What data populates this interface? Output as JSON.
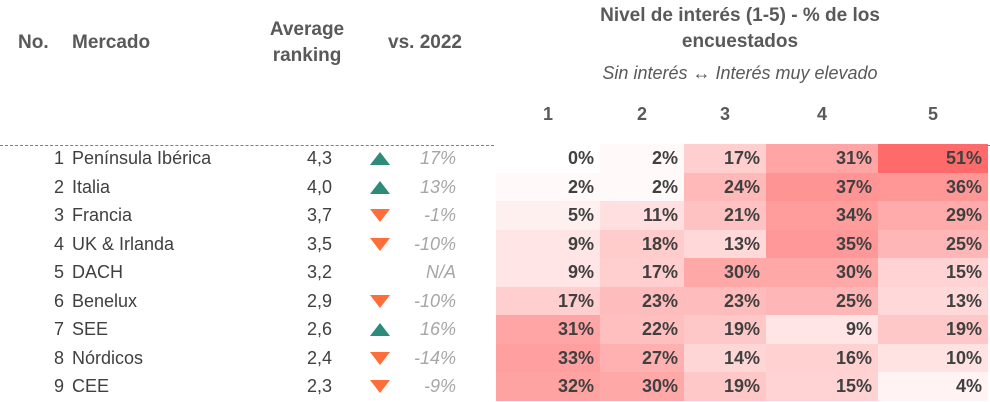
{
  "header": {
    "no": "No.",
    "market": "Mercado",
    "ranking_line1": "Average",
    "ranking_line2": "ranking",
    "vs": "vs. 2022",
    "interest_line1": "Nivel de interés (1-5) - % de los",
    "interest_line2": "encuestados",
    "interest_scale": "Sin interés ↔ Interés muy elevado",
    "levels": [
      "1",
      "2",
      "3",
      "4",
      "5"
    ]
  },
  "colors": {
    "heat_low": "#ffffff",
    "heat_high": "#ff6b6b",
    "arrow_up": "#2e8b7a",
    "arrow_down": "#ff6e3a",
    "change_text": "#a6a6a6"
  },
  "chart_data": {
    "type": "table",
    "columns": [
      "No.",
      "Mercado",
      "Average ranking",
      "vs. 2022",
      "1",
      "2",
      "3",
      "4",
      "5"
    ],
    "rows": [
      {
        "no": "1",
        "market": "Península Ibérica",
        "ranking": "4,3",
        "trend": "up",
        "change": "17%",
        "dist": [
          "0%",
          "2%",
          "17%",
          "31%",
          "51%"
        ],
        "dist_values": [
          0,
          2,
          17,
          31,
          51
        ]
      },
      {
        "no": "2",
        "market": "Italia",
        "ranking": "4,0",
        "trend": "up",
        "change": "13%",
        "dist": [
          "2%",
          "2%",
          "24%",
          "37%",
          "36%"
        ],
        "dist_values": [
          2,
          2,
          24,
          37,
          36
        ]
      },
      {
        "no": "3",
        "market": "Francia",
        "ranking": "3,7",
        "trend": "down",
        "change": "-1%",
        "dist": [
          "5%",
          "11%",
          "21%",
          "34%",
          "29%"
        ],
        "dist_values": [
          5,
          11,
          21,
          34,
          29
        ]
      },
      {
        "no": "4",
        "market": "UK & Irlanda",
        "ranking": "3,5",
        "trend": "down",
        "change": "-10%",
        "dist": [
          "9%",
          "18%",
          "13%",
          "35%",
          "25%"
        ],
        "dist_values": [
          9,
          18,
          13,
          35,
          25
        ]
      },
      {
        "no": "5",
        "market": "DACH",
        "ranking": "3,2",
        "trend": "none",
        "change": "N/A",
        "dist": [
          "9%",
          "17%",
          "30%",
          "30%",
          "15%"
        ],
        "dist_values": [
          9,
          17,
          30,
          30,
          15
        ]
      },
      {
        "no": "6",
        "market": "Benelux",
        "ranking": "2,9",
        "trend": "down",
        "change": "-10%",
        "dist": [
          "17%",
          "23%",
          "23%",
          "25%",
          "13%"
        ],
        "dist_values": [
          17,
          23,
          23,
          25,
          13
        ]
      },
      {
        "no": "7",
        "market": "SEE",
        "ranking": "2,6",
        "trend": "up",
        "change": "16%",
        "dist": [
          "31%",
          "22%",
          "19%",
          "9%",
          "19%"
        ],
        "dist_values": [
          31,
          22,
          19,
          9,
          19
        ]
      },
      {
        "no": "8",
        "market": "Nórdicos",
        "ranking": "2,4",
        "trend": "down",
        "change": "-14%",
        "dist": [
          "33%",
          "27%",
          "14%",
          "16%",
          "10%"
        ],
        "dist_values": [
          33,
          27,
          14,
          16,
          10
        ]
      },
      {
        "no": "9",
        "market": "CEE",
        "ranking": "2,3",
        "trend": "down",
        "change": "-9%",
        "dist": [
          "32%",
          "30%",
          "19%",
          "15%",
          "4%"
        ],
        "dist_values": [
          32,
          30,
          19,
          15,
          4
        ]
      }
    ]
  }
}
